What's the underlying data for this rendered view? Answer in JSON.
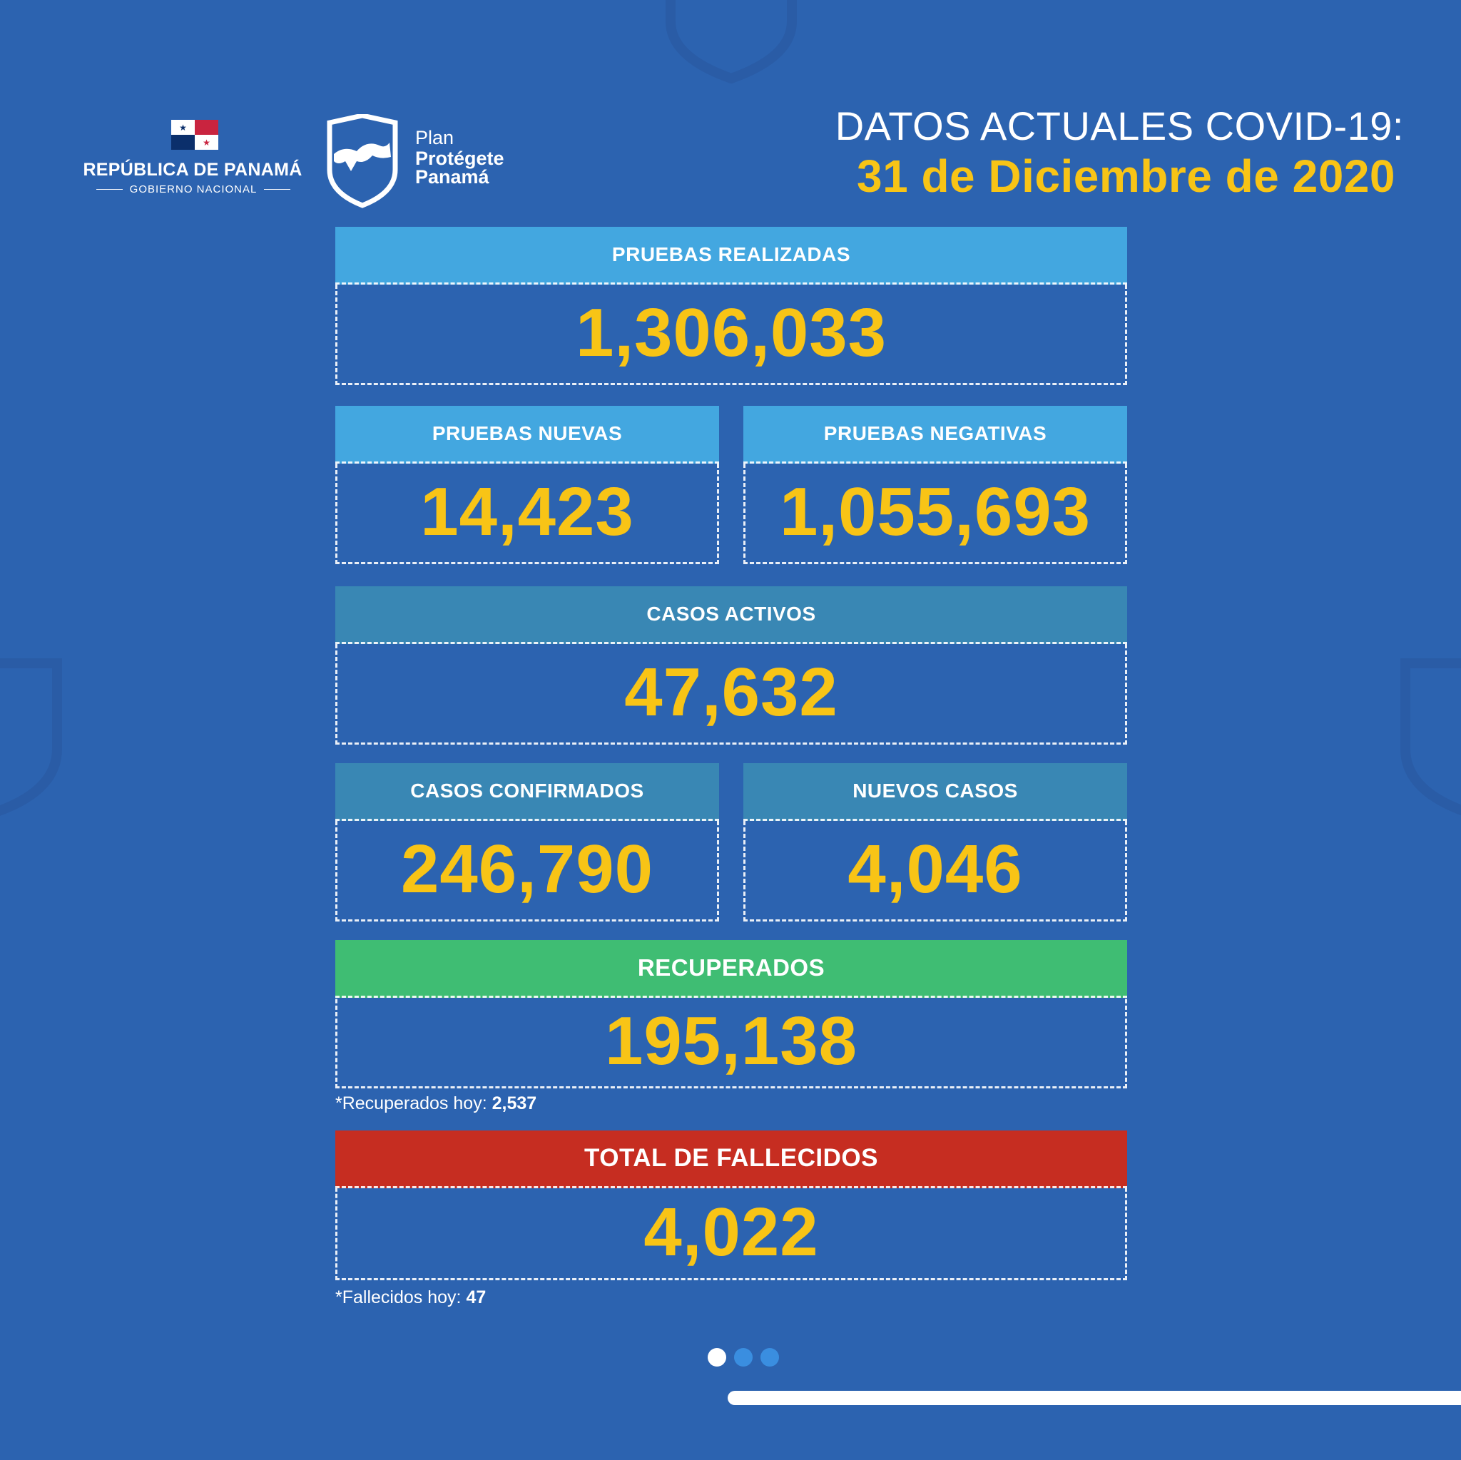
{
  "header": {
    "country": "REPÚBLICA DE PANAMÁ",
    "government": "GOBIERNO NACIONAL",
    "plan_line1": "Plan",
    "plan_line2": "Protégete",
    "plan_line3": "Panamá",
    "title": "DATOS ACTUALES COVID-19:",
    "date": "31 de Diciembre de 2020"
  },
  "stats": {
    "pruebas_realizadas": {
      "label": "PRUEBAS REALIZADAS",
      "value": "1,306,033"
    },
    "pruebas_nuevas": {
      "label": "PRUEBAS NUEVAS",
      "value": "14,423"
    },
    "pruebas_negativas": {
      "label": "PRUEBAS NEGATIVAS",
      "value": "1,055,693"
    },
    "casos_activos": {
      "label": "CASOS ACTIVOS",
      "value": "47,632"
    },
    "casos_confirmados": {
      "label": "CASOS CONFIRMADOS",
      "value": "246,790"
    },
    "nuevos_casos": {
      "label": "NUEVOS CASOS",
      "value": "4,046"
    },
    "recuperados": {
      "label": "RECUPERADOS",
      "value": "195,138"
    },
    "fallecidos": {
      "label": "TOTAL DE FALLECIDOS",
      "value": "4,022"
    }
  },
  "notes": {
    "recuperados_hoy_label": "*Recuperados hoy:",
    "recuperados_hoy_value": "2,537",
    "fallecidos_hoy_label": "*Fallecidos hoy:",
    "fallecidos_hoy_value": "47"
  },
  "colors": {
    "background": "#2c63b0",
    "accent_yellow": "#f8c416",
    "label_light_blue": "#43a7e0",
    "label_teal": "#3987b4",
    "label_green": "#3fbd73",
    "label_red": "#c62d21"
  },
  "pagination": {
    "total": 3,
    "active": 1
  }
}
